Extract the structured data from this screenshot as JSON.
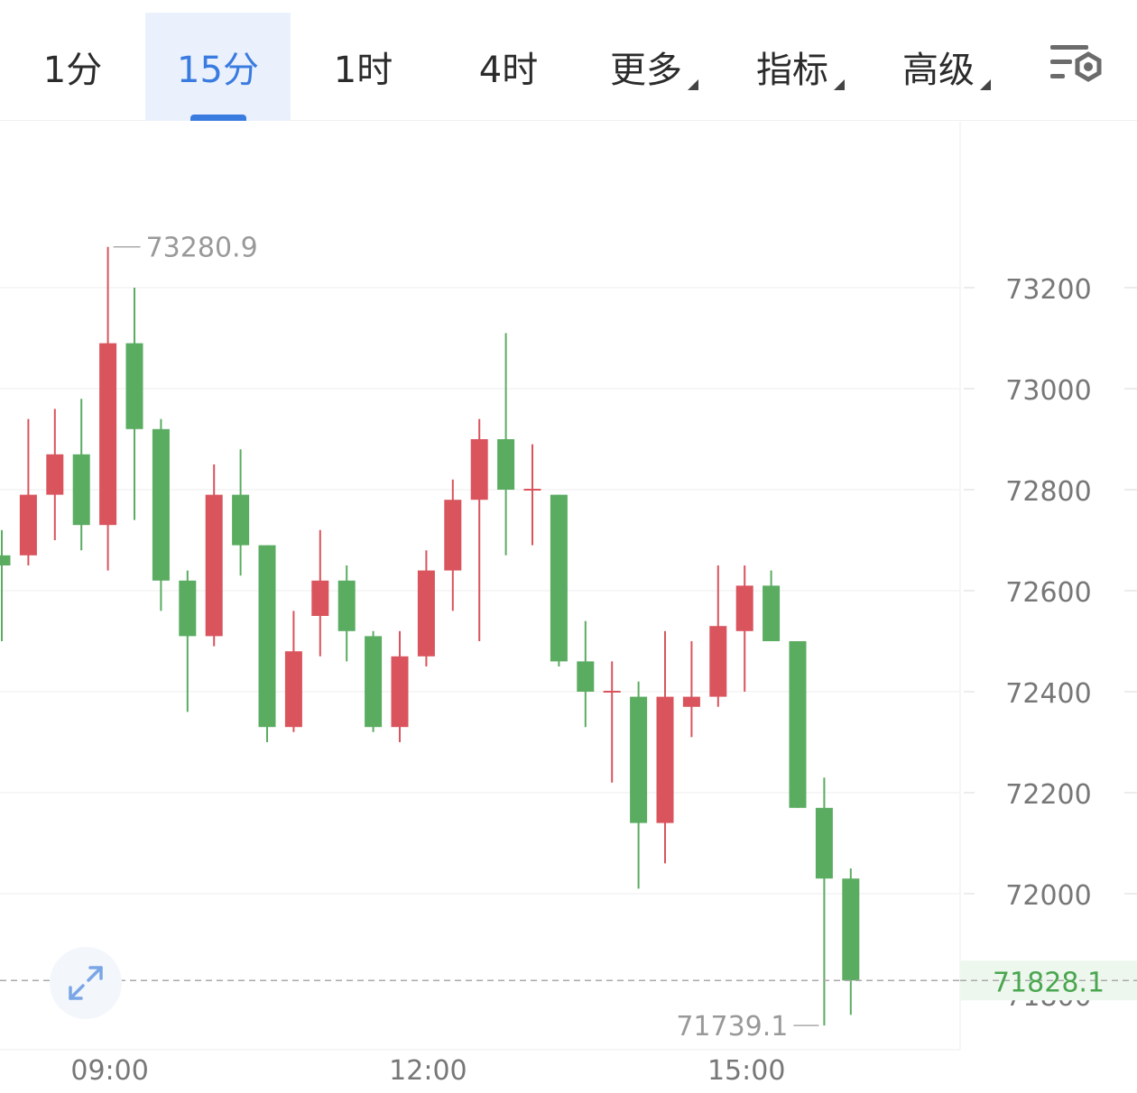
{
  "tabs": [
    {
      "label": "1分",
      "active": false,
      "caret": false
    },
    {
      "label": "15分",
      "active": true,
      "caret": false
    },
    {
      "label": "1时",
      "active": false,
      "caret": false
    },
    {
      "label": "4时",
      "active": false,
      "caret": false
    },
    {
      "label": "更多",
      "active": false,
      "caret": true
    },
    {
      "label": "指标",
      "active": false,
      "caret": true
    },
    {
      "label": "高级",
      "active": false,
      "caret": true
    }
  ],
  "icons": {
    "settings": "chart-settings-icon",
    "expand": "expand-arrows-icon"
  },
  "colors": {
    "up": "#d9545d",
    "down": "#5aac61",
    "accent": "#3a7be0",
    "last_price": "#4aa64f"
  },
  "chart_data": {
    "type": "candlestick",
    "ylim": [
      71660,
      73450
    ],
    "y_ticks": [
      72000,
      72200,
      72400,
      72600,
      72800,
      73000,
      73200
    ],
    "y_tick_labels": [
      "72000",
      "72200",
      "72400",
      "72600",
      "72800",
      "73000",
      "73200"
    ],
    "x_tick_labels": [
      "09:00",
      "12:00",
      "15:00"
    ],
    "x_tick_index": [
      4,
      16,
      28
    ],
    "last_price": 71828.1,
    "last_price_label": "71828.1",
    "partial_tick_label": "71800",
    "high_label": "73280.9",
    "low_label": "71739.1",
    "high_index": 4,
    "low_index": 31,
    "candles": [
      {
        "o": 72670,
        "h": 72720,
        "l": 72500,
        "c": 72650
      },
      {
        "o": 72670,
        "h": 72940,
        "l": 72650,
        "c": 72790
      },
      {
        "o": 72790,
        "h": 72960,
        "l": 72700,
        "c": 72870
      },
      {
        "o": 72870,
        "h": 72980,
        "l": 72680,
        "c": 72730
      },
      {
        "o": 72730,
        "h": 73280.9,
        "l": 72640,
        "c": 73090
      },
      {
        "o": 73090,
        "h": 73200,
        "l": 72740,
        "c": 72920
      },
      {
        "o": 72920,
        "h": 72940,
        "l": 72560,
        "c": 72620
      },
      {
        "o": 72620,
        "h": 72640,
        "l": 72360,
        "c": 72510
      },
      {
        "o": 72510,
        "h": 72850,
        "l": 72490,
        "c": 72790
      },
      {
        "o": 72790,
        "h": 72880,
        "l": 72630,
        "c": 72690
      },
      {
        "o": 72690,
        "h": 72690,
        "l": 72300,
        "c": 72330
      },
      {
        "o": 72330,
        "h": 72560,
        "l": 72320,
        "c": 72480
      },
      {
        "o": 72550,
        "h": 72720,
        "l": 72470,
        "c": 72620
      },
      {
        "o": 72620,
        "h": 72650,
        "l": 72460,
        "c": 72520
      },
      {
        "o": 72510,
        "h": 72520,
        "l": 72320,
        "c": 72330
      },
      {
        "o": 72330,
        "h": 72520,
        "l": 72300,
        "c": 72470
      },
      {
        "o": 72470,
        "h": 72680,
        "l": 72450,
        "c": 72640
      },
      {
        "o": 72640,
        "h": 72820,
        "l": 72560,
        "c": 72780
      },
      {
        "o": 72780,
        "h": 72940,
        "l": 72500,
        "c": 72900
      },
      {
        "o": 72900,
        "h": 73110,
        "l": 72670,
        "c": 72800
      },
      {
        "o": 72800,
        "h": 72890,
        "l": 72690,
        "c": 72800
      },
      {
        "o": 72790,
        "h": 72790,
        "l": 72450,
        "c": 72460
      },
      {
        "o": 72460,
        "h": 72540,
        "l": 72330,
        "c": 72400
      },
      {
        "o": 72400,
        "h": 72460,
        "l": 72220,
        "c": 72400
      },
      {
        "o": 72390,
        "h": 72420,
        "l": 72010,
        "c": 72140
      },
      {
        "o": 72140,
        "h": 72520,
        "l": 72060,
        "c": 72390
      },
      {
        "o": 72370,
        "h": 72500,
        "l": 72310,
        "c": 72390
      },
      {
        "o": 72390,
        "h": 72650,
        "l": 72370,
        "c": 72530
      },
      {
        "o": 72520,
        "h": 72650,
        "l": 72400,
        "c": 72610
      },
      {
        "o": 72610,
        "h": 72640,
        "l": 72500,
        "c": 72500
      },
      {
        "o": 72500,
        "h": 72500,
        "l": 72170,
        "c": 72170
      },
      {
        "o": 72170,
        "h": 72230,
        "l": 71739.1,
        "c": 72030
      },
      {
        "o": 72030,
        "h": 72050,
        "l": 71760,
        "c": 71828.1
      }
    ]
  }
}
